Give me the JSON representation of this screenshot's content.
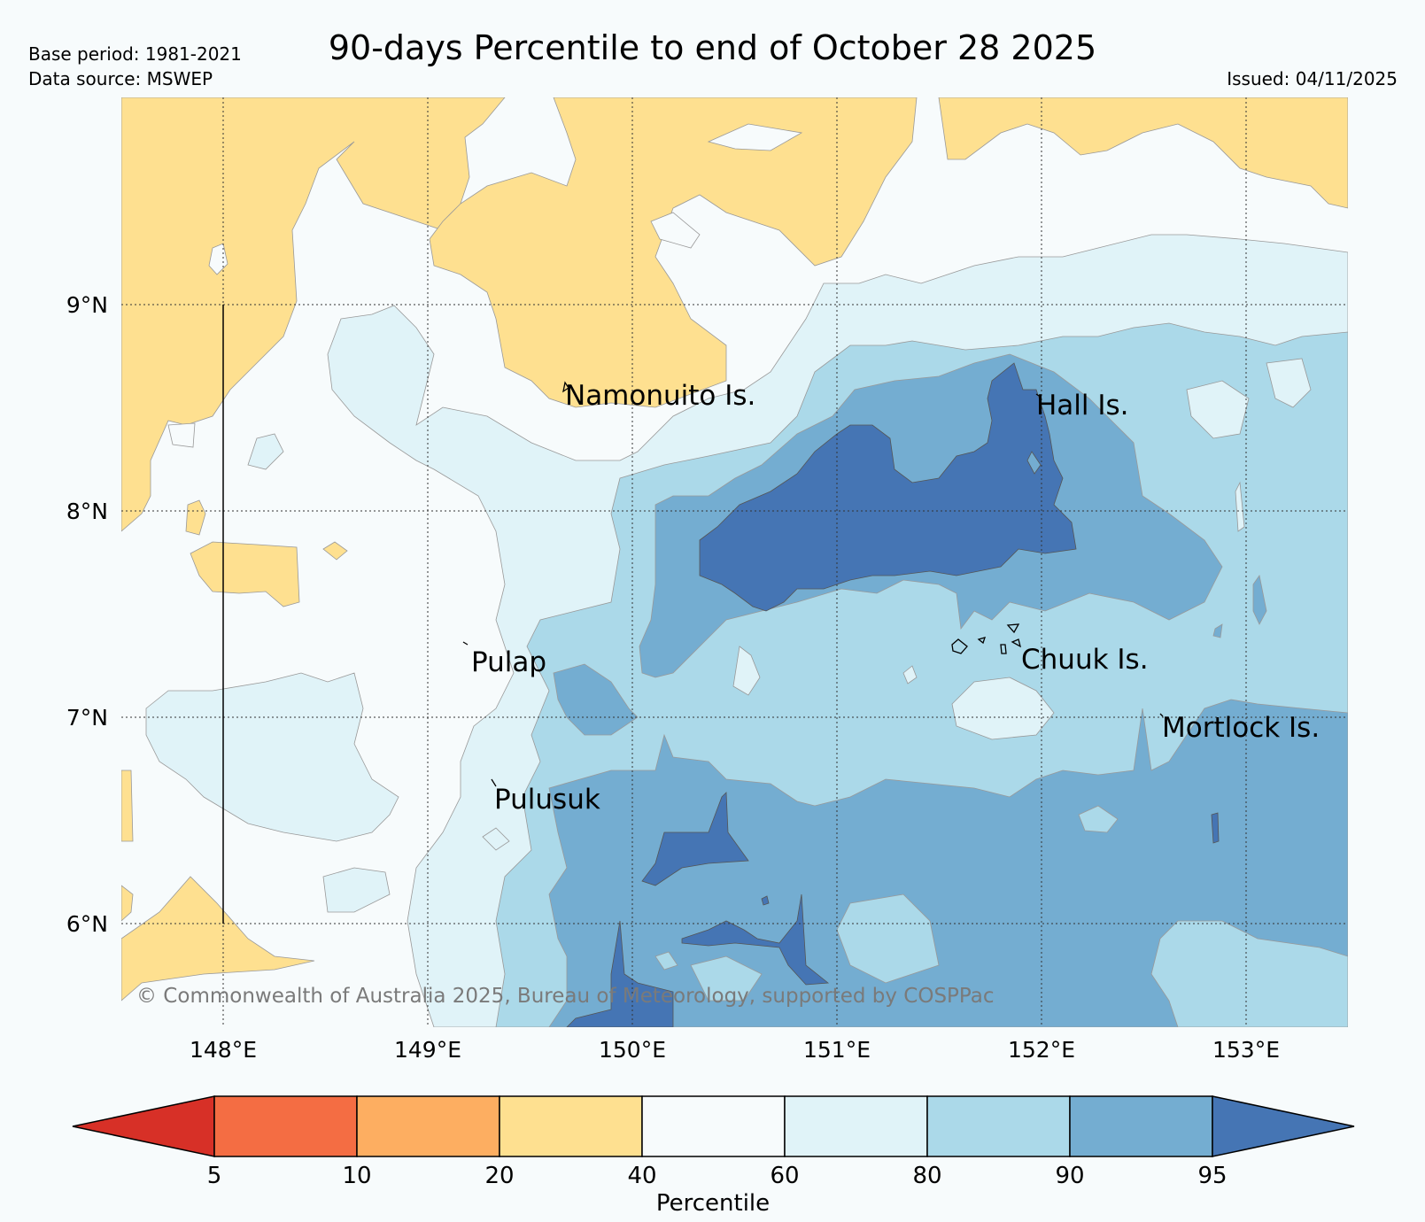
{
  "header": {
    "title": "90-days Percentile to end of October 28 2025",
    "base_period": "Base period: 1981-2021",
    "data_source": "Data source: MSWEP",
    "issued": "Issued: 04/11/2025"
  },
  "map": {
    "lat_ticks": [
      "9°N",
      "8°N",
      "7°N",
      "6°N"
    ],
    "lon_ticks": [
      "148°E",
      "149°E",
      "150°E",
      "151°E",
      "152°E",
      "153°E"
    ],
    "places": [
      {
        "name": "Namonuito Is."
      },
      {
        "name": "Hall Is."
      },
      {
        "name": "Pulap"
      },
      {
        "name": "Chuuk Is."
      },
      {
        "name": "Mortlock Is."
      },
      {
        "name": "Pulusuk"
      }
    ],
    "copyright": "© Commonwealth of Australia 2025, Bureau of Meteorology, supported by COSPPac"
  },
  "legend": {
    "title": "Percentile",
    "boundaries": [
      "5",
      "10",
      "20",
      "40",
      "60",
      "80",
      "90",
      "95"
    ],
    "colors": [
      "#d73027",
      "#f46d43",
      "#fdae61",
      "#fee090",
      "#f7fbfc",
      "#e0f3f8",
      "#abd9e9",
      "#74add1",
      "#4575b4"
    ]
  }
}
